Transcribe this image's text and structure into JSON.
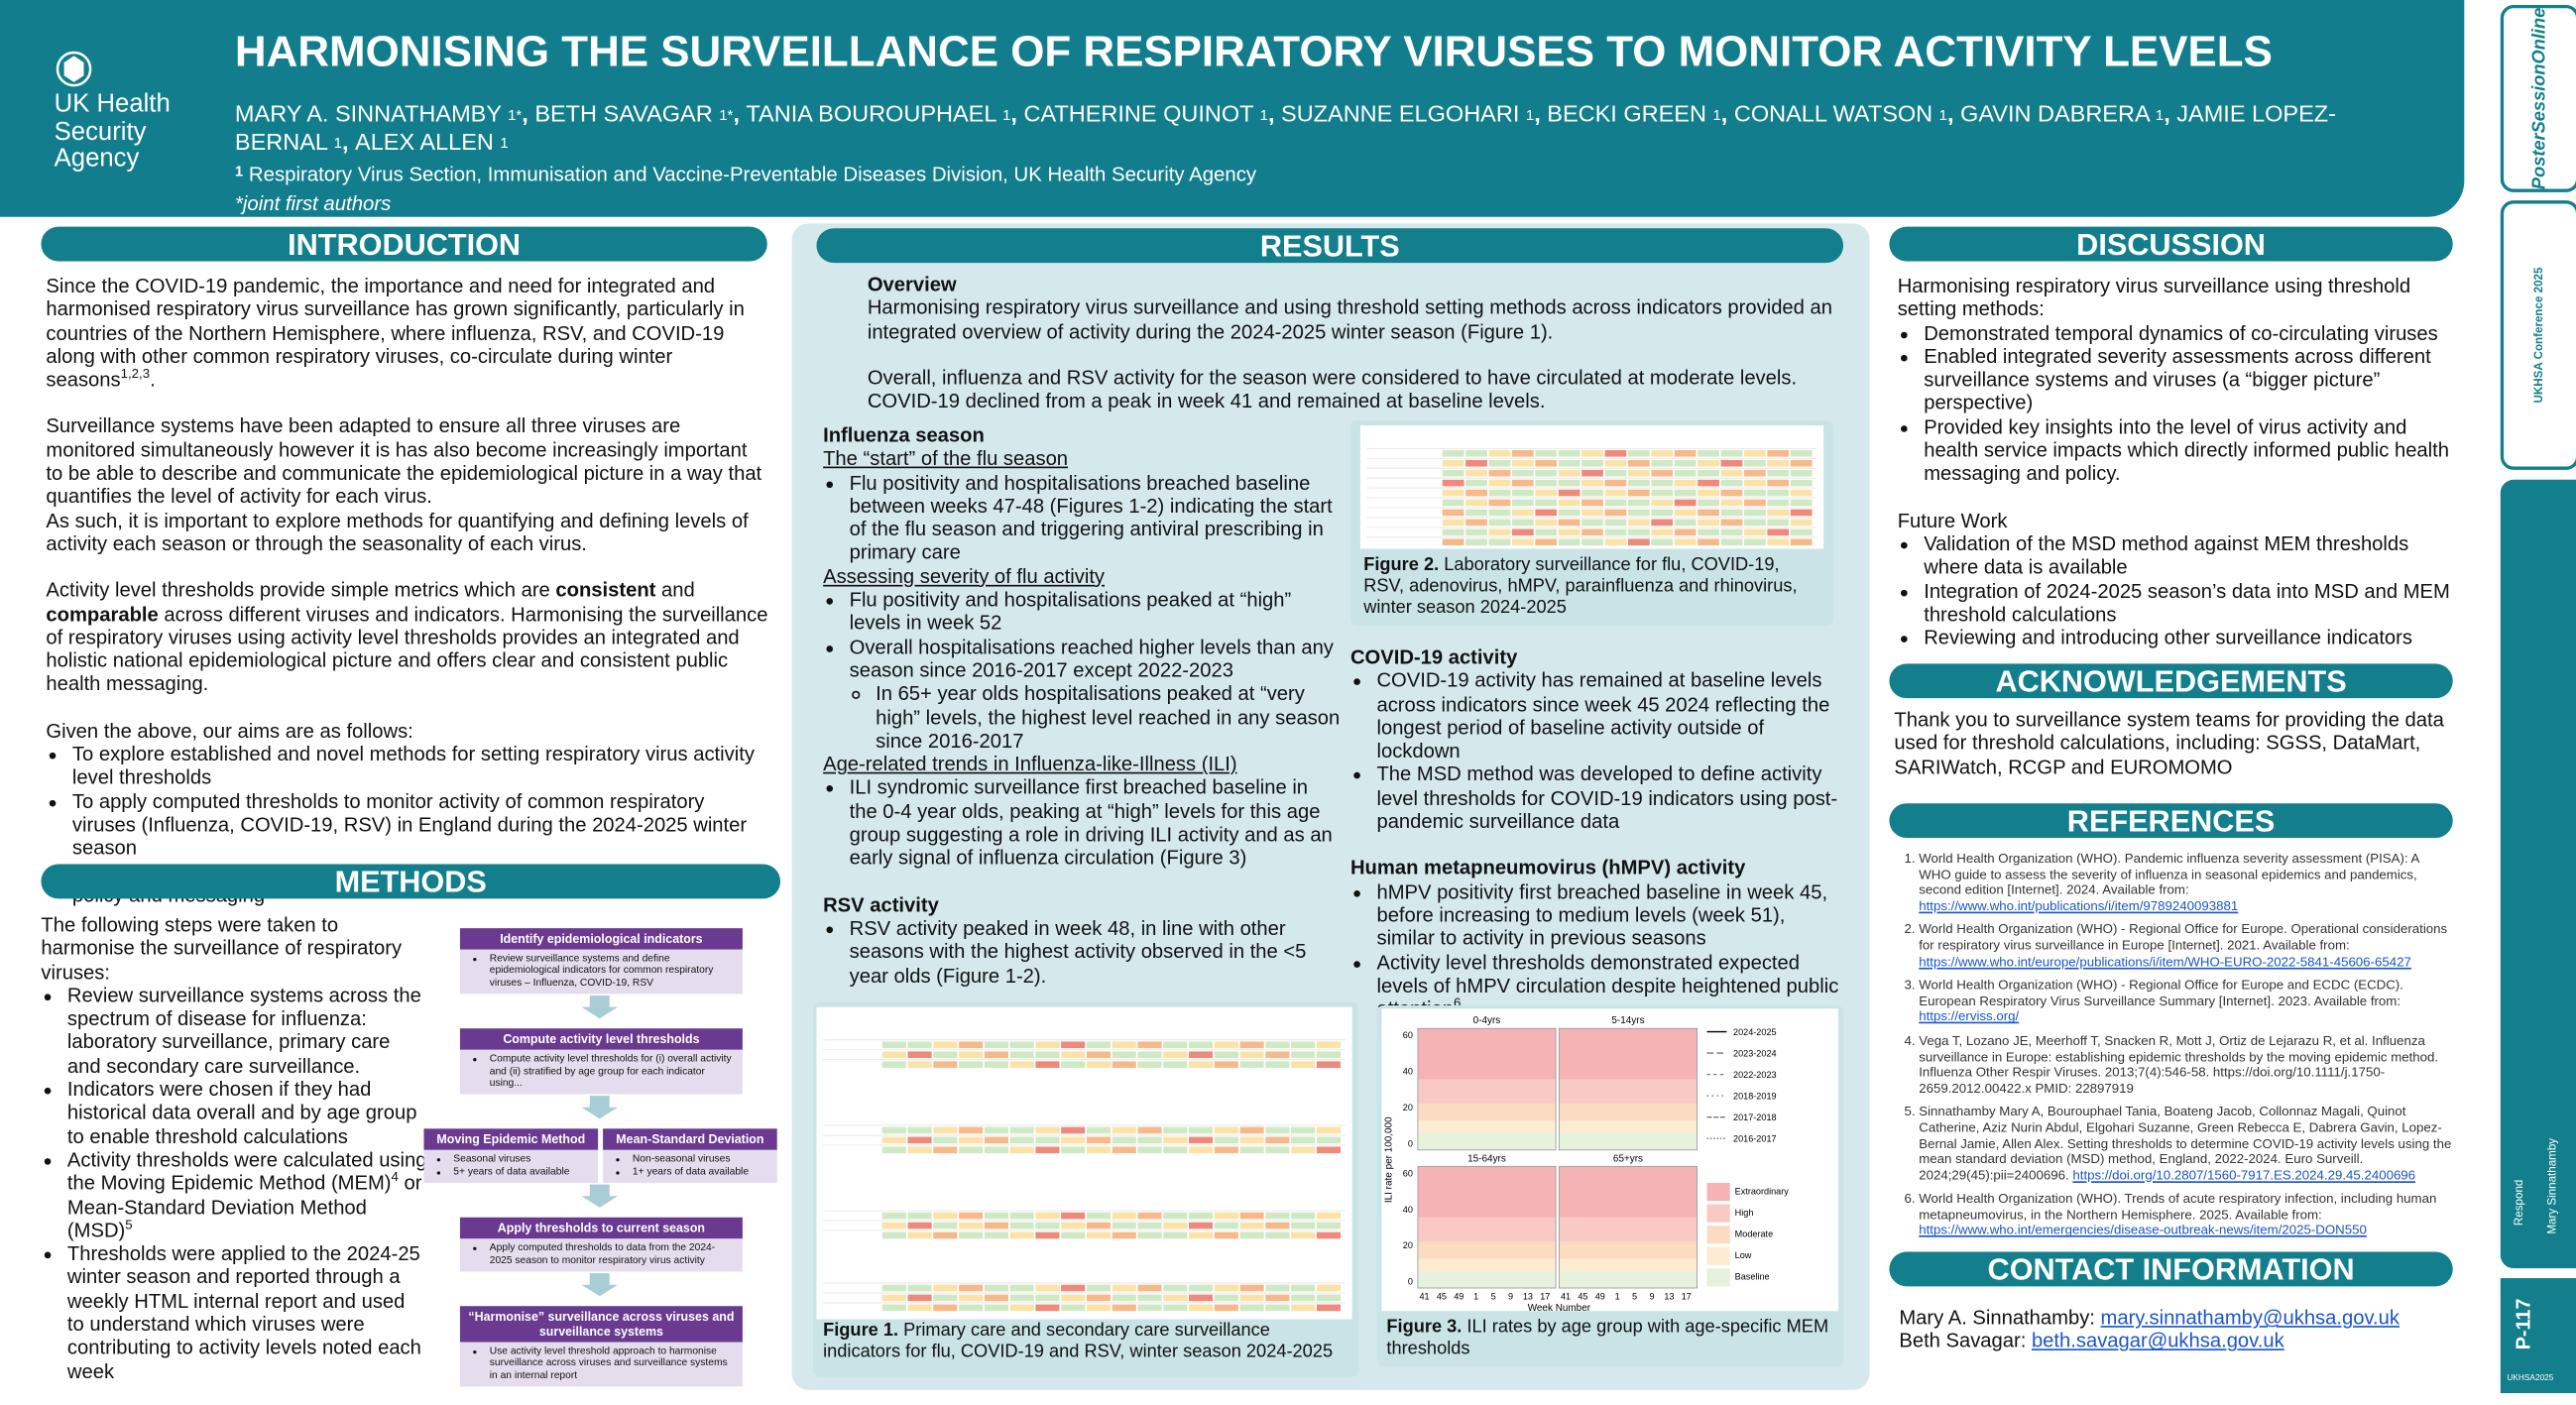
{
  "header": {
    "logo": [
      "UK Health",
      "Security",
      "Agency"
    ],
    "title": "HARMONISING THE SURVEILLANCE OF RESPIRATORY VIRUSES TO MONITOR ACTIVITY LEVELS",
    "authors": [
      {
        "name": "MARY A. SINNATHAMBY ",
        "sup": "1*",
        "sep": ", "
      },
      {
        "name": "BETH SAVAGAR ",
        "sup": "1*",
        "sep": ", "
      },
      {
        "name": "TANIA BOUROUPHAEL ",
        "sup": "1",
        "sep": ", "
      },
      {
        "name": "CATHERINE QUINOT ",
        "sup": "1",
        "sep": ", "
      },
      {
        "name": "SUZANNE ELGOHARI ",
        "sup": "1",
        "sep": ", "
      },
      {
        "name": "BECKI GREEN ",
        "sup": "1",
        "sep": ", "
      },
      {
        "name": "CONALL WATSON ",
        "sup": "1",
        "sep": ", "
      },
      {
        "name": "GAVIN DABRERA ",
        "sup": "1",
        "sep": ", "
      },
      {
        "name": "JAMIE LOPEZ-BERNAL ",
        "sup": "1",
        "sep": ", "
      },
      {
        "name": "ALEX ALLEN ",
        "sup": "1"
      }
    ],
    "affiliation_sup": "1",
    "affiliation": " Respiratory Virus Section, Immunisation and Vaccine-Preventable Diseases Division, UK Health Security Agency",
    "note": "*joint first authors"
  },
  "side": {
    "brand": "PosterSessionOnline",
    "conference": "UKHSA Conference 2025",
    "respond": "Respond",
    "presenter": "Mary Sinnathamby",
    "code": "P-117",
    "tag": "UKHSA2025"
  },
  "introduction": {
    "heading": "INTRODUCTION",
    "p1": [
      "Since the COVID-19 pandemic, the importance and need for integrated and harmonised respiratory virus surveillance has grown significantly, particularly in countries of the Northern Hemisphere, where influenza, RSV, and COVID-19 along with other common respiratory viruses, co-circulate during winter seasons",
      "1,2,3",
      "."
    ],
    "p2": "Surveillance systems have been adapted to ensure all three viruses are monitored simultaneously however it is has also become increasingly important to be able to describe and communicate the epidemiological picture in a way that quantifies the level of activity for each virus.",
    "p3": "As such, it is important to explore methods for quantifying and defining levels of activity each season or through the seasonality of each virus.",
    "p4": [
      "Activity level thresholds provide simple metrics which are ",
      "consistent",
      " and ",
      "comparable",
      " across different viruses and indicators. Harmonising the surveillance of respiratory viruses using activity level thresholds provides an integrated and holistic national epidemiological picture and offers clear and consistent public health messaging."
    ],
    "p5": "Given the above, our aims are as follows:",
    "aims": [
      "To explore established and novel methods for setting respiratory virus activity level thresholds",
      "To apply computed thresholds to monitor activity of common respiratory viruses (Influenza, COVID-19, RSV) in England during the 2024-2025 winter season",
      "To integrate surveillance across viruses and indicators to inform public health policy and messaging"
    ]
  },
  "methods": {
    "heading": "METHODS",
    "intro": "The following steps were taken to harmonise the surveillance of respiratory viruses:",
    "items": [
      "Review surveillance systems across the spectrum of disease for influenza: laboratory surveillance, primary care and secondary care surveillance.",
      "Indicators were chosen if they had historical data overall and by age group to enable threshold calculations",
      [
        "Activity thresholds were calculated using the Moving Epidemic Method (MEM)",
        "4",
        " or Mean-Standard Deviation Method (MSD)",
        "5"
      ],
      "Thresholds were applied to the 2024-25 winter season and reported through a weekly HTML internal report and used to understand which viruses were contributing to activity levels noted each week"
    ],
    "flow": [
      {
        "title": "Identify epidemiological indicators",
        "items": [
          "Review surveillance systems and define epidemiological indicators for common respiratory viruses – Influenza, COVID-19, RSV"
        ]
      },
      {
        "title": "Compute activity level thresholds",
        "items": [
          "Compute activity level thresholds for (i) overall activity and (ii) stratified by age group for each indicator using..."
        ]
      },
      {
        "title": "Apply thresholds to current season",
        "items": [
          "Apply computed thresholds to data from the 2024-2025 season to monitor respiratory virus activity"
        ]
      },
      {
        "title": "“Harmonise” surveillance across viruses and surveillance systems",
        "items": [
          "Use activity level threshold approach to harmonise surveillance across viruses and surveillance systems in an internal report"
        ]
      }
    ],
    "methods_split": [
      {
        "title": "Moving Epidemic Method",
        "items": [
          "Seasonal viruses",
          "5+ years of data available"
        ]
      },
      {
        "title": "Mean-Standard Deviation",
        "items": [
          "Non-seasonal viruses",
          "1+ years of data available"
        ]
      }
    ]
  },
  "results": {
    "heading": "RESULTS",
    "overview_heading": "Overview",
    "overview_p1": "Harmonising respiratory virus surveillance and using threshold setting methods across indicators provided an integrated overview of activity during the 2024-2025 winter season (Figure 1).",
    "overview_p2": "Overall, influenza and RSV activity for the season were considered to have circulated at moderate levels. COVID-19 declined from a peak in week 41 and remained at baseline levels.",
    "influenza": {
      "heading": "Influenza season",
      "groups": [
        {
          "sub": "The “start” of the flu season",
          "items": [
            "Flu positivity and hospitalisations breached baseline between weeks 47-48 (Figures 1-2) indicating the start of the flu season and triggering antiviral prescribing in primary care"
          ]
        },
        {
          "sub": "Assessing severity of flu activity",
          "items": [
            "Flu positivity and hospitalisations peaked at “high” levels in week 52",
            {
              "text": "Overall hospitalisations reached higher levels than any season since 2016-2017 except 2022-2023",
              "items": [
                "In 65+ year olds hospitalisations peaked at “very high” levels, the highest level reached in any season since 2016-2017"
              ]
            }
          ]
        },
        {
          "sub": "Age-related trends in Influenza-like-Illness (ILI)",
          "items": [
            "ILI syndromic surveillance first breached baseline in the 0-4 year olds, peaking at “high” levels for this age group suggesting a role in driving ILI activity and as an early signal of influenza circulation (Figure 3)"
          ]
        }
      ]
    },
    "rsv": {
      "heading": "RSV activity",
      "items": [
        "RSV activity peaked in week 48, in line with other seasons with the highest activity observed in the <5 year olds (Figure 1-2)."
      ]
    },
    "covid": {
      "heading": "COVID-19 activity",
      "items": [
        "COVID-19 activity has remained at baseline levels across indicators since week 45 2024 reflecting the longest period of baseline activity outside of lockdown",
        "The MSD method was developed to define activity level thresholds for COVID-19 indicators using post-pandemic surveillance data"
      ]
    },
    "hmpv": {
      "heading": "Human metapneumovirus (hMPV) activity",
      "items": [
        "hMPV positivity first breached baseline in week 45, before increasing to medium levels (week 51), similar to activity in previous seasons",
        [
          "Activity level thresholds demonstrated expected levels of hMPV circulation despite heightened public attention",
          "6"
        ]
      ]
    },
    "figure1": {
      "label": "Figure 1.",
      "text": " Primary care and secondary care surveillance indicators for flu, COVID-19 and RSV, winter season 2024-2025"
    },
    "figure2": {
      "label": "Figure 2.",
      "text": " Laboratory surveillance for flu, COVID-19, RSV, adenovirus, hMPV, parainfluenza and rhinovirus, winter season 2024-2025"
    },
    "figure3": {
      "label": "Figure 3.",
      "text": " ILI rates by age group with age-specific MEM thresholds",
      "panels": [
        "0-4yrs",
        "5-14yrs",
        "15-64yrs",
        "65+yrs"
      ],
      "y_label": "ILI rate per 100,000",
      "x_label": "Week Number",
      "yticks": [
        "60",
        "40",
        "20",
        "0"
      ],
      "xticks": [
        "41",
        "45",
        "49",
        "1",
        "5",
        "9",
        "13",
        "17"
      ],
      "seasons": [
        "2024-2025",
        "2023-2024",
        "2022-2023",
        "2018-2019",
        "2017-2018",
        "2016-2017"
      ],
      "levels": [
        "Extraordinary",
        "High",
        "Moderate",
        "Low",
        "Baseline"
      ]
    }
  },
  "discussion": {
    "heading": "DISCUSSION",
    "intro": "Harmonising respiratory virus surveillance using threshold setting methods:",
    "items": [
      "Demonstrated temporal dynamics of co-circulating viruses",
      "Enabled integrated severity assessments across different surveillance systems and viruses (a “bigger picture” perspective)",
      "Provided key insights into the level of virus activity and health service impacts which directly informed public health messaging and policy."
    ],
    "future_heading": "Future Work",
    "future_items": [
      "Validation of the MSD method against MEM thresholds where data is available",
      "Integration of 2024-2025 season’s data into MSD and MEM threshold calculations",
      "Reviewing and introducing other surveillance indicators"
    ]
  },
  "acknowledgements": {
    "heading": "ACKNOWLEDGEMENTS",
    "text": "Thank you to surveillance system teams for providing the data used for threshold calculations, including: SGSS, DataMart, SARIWatch, RCGP and EUROMOMO"
  },
  "references": {
    "heading": "REFERENCES",
    "items": [
      {
        "text": "World Health Organization (WHO). Pandemic influenza severity assessment (PISA): A WHO guide to assess the severity of influenza in seasonal epidemics and pandemics, second edition [Internet]. 2024. Available from: ",
        "link": "https://www.who.int/publications/i/item/9789240093881"
      },
      {
        "text": "World Health Organization (WHO) - Regional Office for Europe. Operational considerations for respiratory virus surveillance in Europe [Internet]. 2021. Available from: ",
        "link": "https://www.who.int/europe/publications/i/item/WHO-EURO-2022-5841-45606-65427"
      },
      {
        "text": "World Health Organization (WHO) - Regional Office for Europe and ECDC (ECDC). European Respiratory Virus Surveillance Summary [Internet]. 2023. Available from: ",
        "link": "https://erviss.org/"
      },
      {
        "text": "Vega T, Lozano JE, Meerhoff T, Snacken R, Mott J, Ortiz de Lejarazu R, et al. Influenza surveillance in Europe: establishing epidemic thresholds by the moving epidemic method. Influenza Other Respir Viruses. 2013;7(4):546-58. https://doi.org/10.1111/j.1750-2659.2012.00422.x PMID: 22897919"
      },
      {
        "text": "Sinnathamby Mary A, Bourouphael Tania, Boateng Jacob, Collonnaz Magali, Quinot Catherine, Aziz Nurin Abdul, Elgohari Suzanne, Green Rebecca E, Dabrera Gavin, Lopez-Bernal Jamie, Allen Alex. Setting thresholds to determine COVID-19 activity levels using the mean standard deviation (MSD) method, England, 2022-2024. Euro Surveill. 2024;29(45):pii=2400696. ",
        "link": "https://doi.org/10.2807/1560-7917.ES.2024.29.45.2400696"
      },
      {
        "text": "World Health Organization (WHO). Trends of acute respiratory infection, including human metapneumovirus, in the Northern Hemisphere. 2025. Available from: ",
        "link": "https://www.who.int/emergencies/disease-outbreak-news/item/2025-DON550"
      }
    ]
  },
  "contact": {
    "heading": "CONTACT INFORMATION",
    "people": [
      {
        "name": "Mary A. Sinnathamby: ",
        "email": "mary.sinnathamby@ukhsa.gov.uk"
      },
      {
        "name": "Beth Savagar: ",
        "email": "beth.savagar@ukhsa.gov.uk"
      }
    ]
  }
}
